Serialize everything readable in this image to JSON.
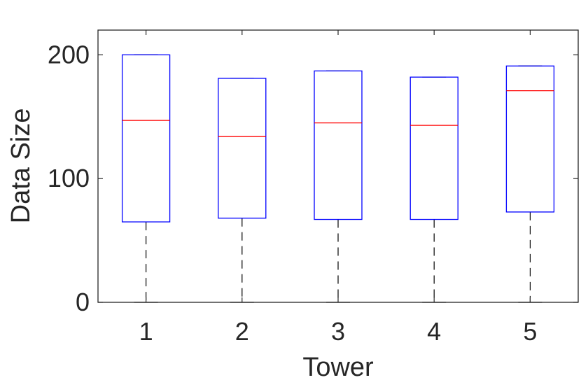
{
  "chart_data": {
    "type": "box",
    "xlabel": "Tower",
    "ylabel": "Data Size",
    "ylim": [
      0,
      220
    ],
    "yticks": [
      0,
      100,
      200
    ],
    "categories": [
      "1",
      "2",
      "3",
      "4",
      "5"
    ],
    "boxes": [
      {
        "category": "1",
        "min": 0,
        "q1": 65,
        "median": 147,
        "q3": 200,
        "max": 200
      },
      {
        "category": "2",
        "min": 0,
        "q1": 68,
        "median": 134,
        "q3": 181,
        "max": 181
      },
      {
        "category": "3",
        "min": 0,
        "q1": 67,
        "median": 145,
        "q3": 187,
        "max": 187
      },
      {
        "category": "4",
        "min": 0,
        "q1": 67,
        "median": 143,
        "q3": 182,
        "max": 182
      },
      {
        "category": "5",
        "min": 0,
        "q1": 73,
        "median": 171,
        "q3": 191,
        "max": 191
      }
    ],
    "grid": false,
    "colors": {
      "box": "#0000ff",
      "median": "#ff0000",
      "whisker": "#000000",
      "axis": "#262626"
    }
  }
}
